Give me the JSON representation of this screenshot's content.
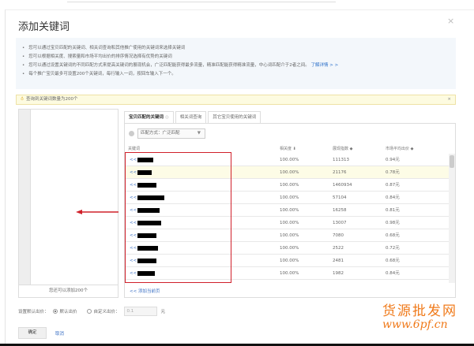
{
  "dialog": {
    "title": "添加关键词",
    "close": "×"
  },
  "info": {
    "items": [
      "您可以通过宝贝匹配的关键词、相关词查询和其他推广使用的关键词来选择关键词",
      "您可以根据相关度、搜索量和市场平均出价的排序情况选择有优势的关键词",
      "您可以通过设置关键词的不同匹配方式来提高关键词的展现机会，广泛匹配能获得最多流量，精准匹配能获得精准流量，中心词匹配介于2者之间。",
      "每个推广宝贝最多可设置200个关键词，每行输入一词，按回车输入下一个。"
    ],
    "link": "了解详情 > >"
  },
  "notice": {
    "text": "查询到关键词数量为200个",
    "close": "×"
  },
  "left_panel": {
    "remaining": "您还可以添加200个"
  },
  "tabs": [
    {
      "label": "宝贝匹配的关键词"
    },
    {
      "label": "相关词查询"
    },
    {
      "label": "其它宝贝使用的关键词"
    }
  ],
  "match": {
    "label": "匹配方式：广泛匹配",
    "chevron": "▼"
  },
  "table": {
    "headers": [
      "关键词",
      "相关度 ⬇",
      "展现指数 ◆",
      "市场平均出价 ◆"
    ],
    "add_symbol": "<<",
    "rows": [
      {
        "relevance": "100.00%",
        "impressions": "111313",
        "price": "0.94元"
      },
      {
        "relevance": "100.00%",
        "impressions": "21176",
        "price": "0.78元"
      },
      {
        "relevance": "100.00%",
        "impressions": "1460934",
        "price": "0.87元"
      },
      {
        "relevance": "100.00%",
        "impressions": "57104",
        "price": "0.84元"
      },
      {
        "relevance": "100.00%",
        "impressions": "16258",
        "price": "0.81元"
      },
      {
        "relevance": "100.00%",
        "impressions": "13007",
        "price": "0.98元"
      },
      {
        "relevance": "100.00%",
        "impressions": "7080",
        "price": "0.68元"
      },
      {
        "relevance": "100.00%",
        "impressions": "2522",
        "price": "0.72元"
      },
      {
        "relevance": "100.00%",
        "impressions": "2481",
        "price": "0.68元"
      },
      {
        "relevance": "100.00%",
        "impressions": "1982",
        "price": "0.84元"
      }
    ],
    "add_page": "<<  添加当前页"
  },
  "bid": {
    "label": "设置默认出价：",
    "default": "默认出价",
    "custom": "自定义出价：",
    "value": "0.1",
    "unit": "元"
  },
  "buttons": {
    "ok": "确定",
    "cancel": "取消"
  },
  "watermark": {
    "line1": "货源批发网",
    "line2": "www.6pf.cn"
  },
  "colors": {
    "highlight_box": "#d0202a",
    "link": "#3a6fc4",
    "watermark": "#f07a1a"
  }
}
